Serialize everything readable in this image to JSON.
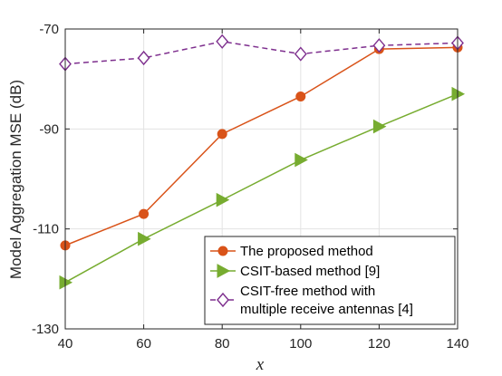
{
  "chart_data": {
    "type": "line",
    "title": "",
    "xlabel": "x",
    "ylabel": "Model Aggregation MSE (dB)",
    "x": [
      40,
      60,
      80,
      100,
      120,
      140
    ],
    "xticks": [
      "40",
      "60",
      "80",
      "100",
      "120",
      "140"
    ],
    "yticks": [
      "-70",
      "-90",
      "-110",
      "-130"
    ],
    "xlim": [
      40,
      140
    ],
    "ylim": [
      -130,
      -70
    ],
    "ytick_values": [
      -70,
      -90,
      -110,
      -130
    ],
    "grid": true,
    "legend_placement": "bottom-right",
    "series": [
      {
        "name": "The proposed method",
        "legend_lines": [
          "The proposed method"
        ],
        "values": [
          -113.3,
          -107.0,
          -91.0,
          -83.5,
          -74.0,
          -73.7
        ],
        "color": "#D95319",
        "marker": "circle",
        "dash": "solid"
      },
      {
        "name": "CSIT-based method [9]",
        "legend_lines": [
          "CSIT-based method [9]"
        ],
        "values": [
          -120.7,
          -112.0,
          -104.2,
          -96.2,
          -89.5,
          -83.0
        ],
        "color": "#77AC30",
        "marker": "triangle-right",
        "dash": "solid"
      },
      {
        "name": "CSIT-free method with multiple receive antennas [4]",
        "legend_lines": [
          "CSIT-free method with",
          "multiple receive antennas [4]"
        ],
        "values": [
          -77.0,
          -75.8,
          -72.5,
          -75.0,
          -73.3,
          -72.8
        ],
        "color": "#7E2F8E",
        "marker": "diamond",
        "dash": "dashed"
      }
    ]
  }
}
